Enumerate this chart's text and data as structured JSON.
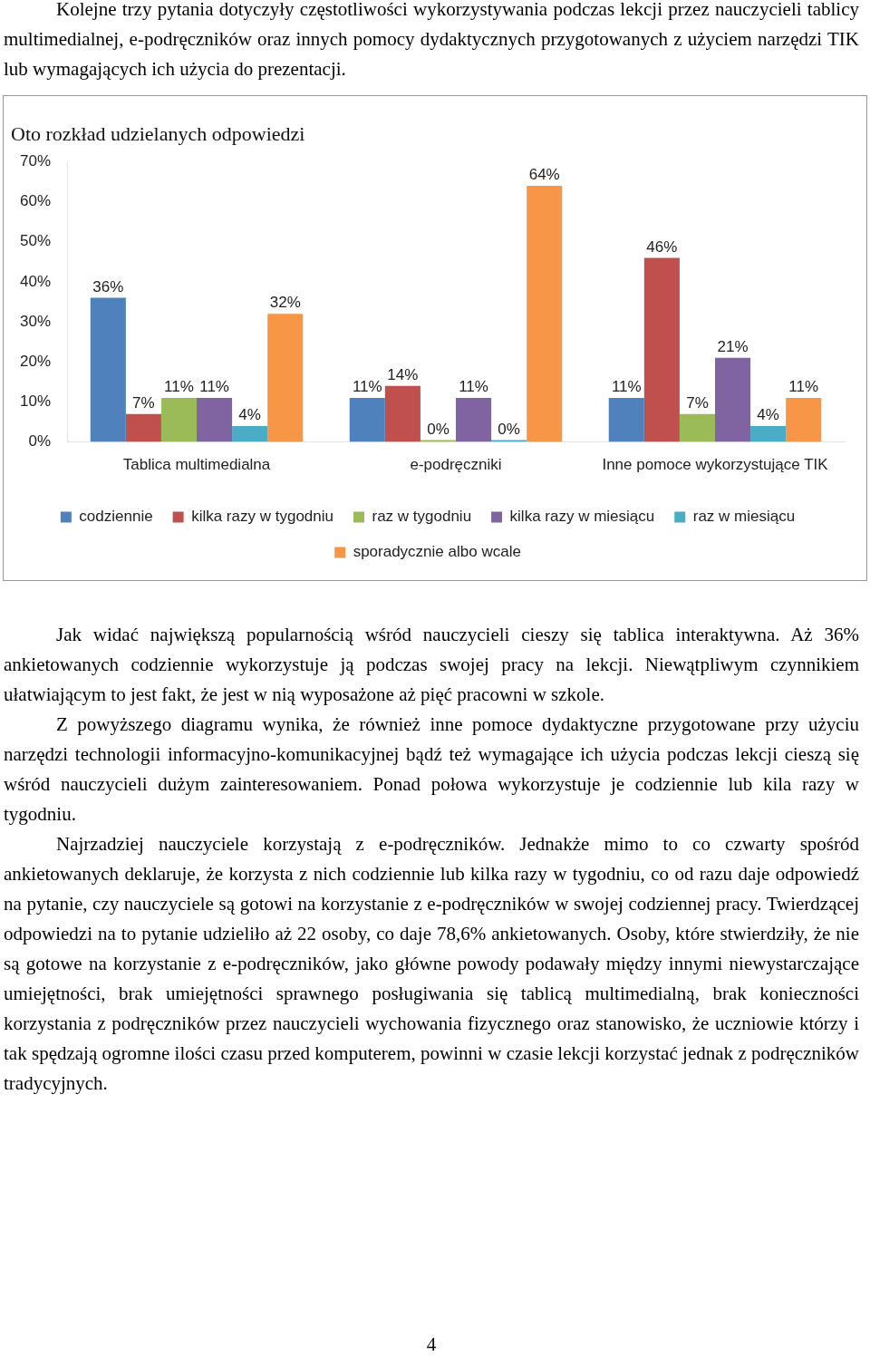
{
  "chart_data": {
    "type": "bar",
    "title": "Oto rozkład udzielanych odpowiedzi",
    "categories": [
      "Tablica multimedialna",
      "e-podręczniki",
      "Inne pomoce wykorzystujące TIK"
    ],
    "series": [
      {
        "name": "codziennie",
        "color": "#4f81bd",
        "values": [
          36,
          11,
          11
        ],
        "value_labels": [
          "36%",
          "11%",
          "11%"
        ]
      },
      {
        "name": "kilka razy w tygodniu",
        "color": "#c0504d",
        "values": [
          7,
          14,
          46
        ],
        "value_labels": [
          "7%",
          "14%",
          "46%"
        ]
      },
      {
        "name": "raz w tygodniu",
        "color": "#9bbb59",
        "values": [
          11,
          0,
          7
        ],
        "value_labels": [
          "11%",
          "0%",
          "7%"
        ]
      },
      {
        "name": "kilka razy w miesiącu",
        "color": "#8064a2",
        "values": [
          11,
          11,
          21
        ],
        "value_labels": [
          "11%",
          "11%",
          "21%"
        ]
      },
      {
        "name": "raz w miesiącu",
        "color": "#4bacc6",
        "values": [
          4,
          0,
          4
        ],
        "value_labels": [
          "4%",
          "0%",
          "4%"
        ]
      },
      {
        "name": "sporadycznie albo wcale",
        "color": "#f79646",
        "values": [
          32,
          64,
          11
        ],
        "value_labels": [
          "32%",
          "64%",
          "11%"
        ]
      }
    ],
    "ylim": [
      0,
      70
    ],
    "yticks": [
      {
        "value": 0,
        "label": "0%"
      },
      {
        "value": 10,
        "label": "10%"
      },
      {
        "value": 20,
        "label": "20%"
      },
      {
        "value": 30,
        "label": "30%"
      },
      {
        "value": 40,
        "label": "40%"
      },
      {
        "value": 50,
        "label": "50%"
      },
      {
        "value": 60,
        "label": "60%"
      },
      {
        "value": 70,
        "label": "70%"
      }
    ],
    "grid": false,
    "legend": "bottom",
    "annotations": [
      "Kolejne trzy pytania dotyczyły częstotliwości wykorzystywania podczas lekcji przez nauczycieli tablicy multimedialnej, e-podręczników oraz innych pomocy dydaktycznych przygotowanych z użyciem narzędzi TIK lub wymagających ich użycia do prezentacji.",
      "Jak widać największą popularnością wśród nauczycieli cieszy się tablica interaktywna. Aż 36% ankietowanych codziennie wykorzystuje ją podczas swojej pracy na lekcji. Niewątpliwym czynnikiem ułatwiającym to jest fakt, że jest w nią wyposażone aż pięć pracowni w szkole.",
      "Z powyższego diagramu wynika, że również inne pomoce dydaktyczne przygotowane przy użyciu narzędzi technologii informacyjno-komunikacyjnej bądź też wymagające ich użycia podczas lekcji cieszą się wśród nauczycieli dużym zainteresowaniem. Ponad połowa wykorzystuje je codziennie lub kila razy w tygodniu.",
      "Najrzadziej nauczyciele korzystają z e-podręczników. Jednakże mimo to co czwarty spośród ankietowanych deklaruje, że korzysta z nich codziennie lub kilka razy w tygodniu, co od razu daje odpowiedź na pytanie, czy nauczyciele są gotowi na korzystanie z e-podręczników w swojej codziennej pracy. Twierdzącej odpowiedzi na to pytanie udzieliło aż 22 osoby, co daje 78,6% ankietowanych. Osoby, które stwierdziły, że nie są gotowe na korzystanie z e-podręczników, jako główne powody podawały między innymi niewystarczające umiejętności, brak umiejętności sprawnego posługiwania się tablicą multimedialną, brak konieczności korzystania z podręczników przez nauczycieli wychowania fizycznego oraz stanowisko, że uczniowie którzy i tak spędzają ogromne ilości czasu przed komputerem, powinni w czasie lekcji korzystać jednak z podręczników tradycyjnych.",
      "4"
    ]
  }
}
